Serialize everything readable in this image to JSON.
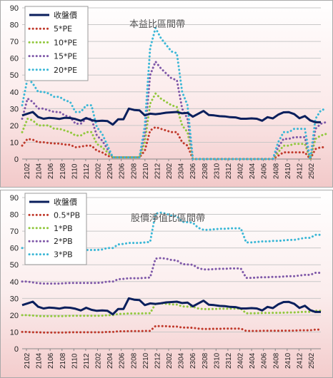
{
  "chart_data": [
    {
      "type": "line",
      "title": "本益比區間帶",
      "ylim": [
        0,
        90
      ],
      "yticks": [
        0,
        10,
        20,
        30,
        40,
        50,
        60,
        70,
        80,
        90
      ],
      "x_tick_labels": [
        "2102",
        "2104",
        "2106",
        "2108",
        "2110",
        "2112",
        "2202",
        "2204",
        "2206",
        "2208",
        "2210",
        "2212",
        "2302",
        "2304",
        "2306",
        "2308",
        "2310",
        "2312",
        "2402",
        "2404",
        "2406",
        "2408",
        "2410",
        "2412",
        "2502"
      ],
      "legend_position": "top-left",
      "grid": true,
      "series": [
        {
          "name": "收盤價",
          "color": "#0a1f5c",
          "style": "solid",
          "values": [
            26,
            27,
            28,
            25,
            24,
            24.5,
            24.3,
            23.9,
            24.6,
            24.4,
            23.8,
            22.8,
            24.4,
            23.2,
            22.6,
            22.8,
            22.6,
            20.5,
            23.7,
            23.7,
            30,
            29.2,
            29,
            26,
            27,
            26.7,
            27.1,
            27.6,
            27.8,
            28,
            27.2,
            27.5,
            25.2,
            26.9,
            28.6,
            26.2,
            26,
            25.5,
            25.4,
            24.9,
            24.8,
            24,
            24,
            24.2,
            24,
            22.8,
            24.9,
            24.2,
            26.4,
            27.8,
            27.9,
            26.8,
            24.3,
            25.6,
            23,
            21.9,
            21.9
          ]
        },
        {
          "name": "5*PE",
          "color": "#c0392b",
          "style": "dot",
          "values": [
            8,
            12,
            11.5,
            10,
            10,
            9.5,
            9.3,
            9.2,
            8.6,
            8.5,
            7,
            7.4,
            8,
            8,
            5,
            4,
            2,
            1,
            1,
            1,
            1,
            1,
            1,
            5,
            17,
            19,
            18,
            17,
            16,
            16,
            10,
            8,
            0,
            0,
            0,
            0,
            0,
            0,
            0,
            0,
            0,
            0,
            0,
            0,
            0,
            0,
            0,
            0,
            2,
            4,
            4,
            4,
            4,
            4,
            0,
            6,
            7,
            7
          ]
        },
        {
          "name": "10*PE",
          "color": "#92c83e",
          "style": "dot",
          "values": [
            16,
            24,
            23,
            20,
            20,
            20,
            18,
            18,
            17,
            16,
            14,
            14,
            16,
            16,
            9,
            7,
            4,
            1,
            1,
            1,
            1,
            1,
            1,
            10,
            33,
            39,
            36,
            34,
            32,
            31,
            20,
            16,
            0,
            0,
            0,
            0,
            0,
            0,
            0,
            0,
            0,
            0,
            0,
            0,
            0,
            0,
            0,
            0,
            4,
            8,
            8,
            9,
            9,
            9,
            0,
            12,
            14,
            15
          ]
        },
        {
          "name": "15*PE",
          "color": "#7e57a8",
          "style": "dot",
          "values": [
            24,
            36,
            34,
            30,
            30,
            29,
            28,
            28,
            26,
            25,
            21,
            21,
            24,
            24,
            14,
            11,
            6,
            1,
            1,
            1,
            1,
            1,
            1,
            15,
            50,
            58,
            54,
            51,
            48,
            47,
            30,
            24,
            0,
            0,
            0,
            0,
            0,
            0,
            0,
            0,
            0,
            0,
            0,
            0,
            0,
            0,
            0,
            0,
            7,
            12,
            12,
            13,
            13,
            13,
            0,
            18,
            21,
            22
          ]
        },
        {
          "name": "20*PE",
          "color": "#3ab7d6",
          "style": "dot",
          "values": [
            32,
            48,
            45,
            40,
            40,
            39,
            37,
            37,
            35,
            34,
            28,
            28,
            32,
            32,
            19,
            15,
            8,
            1,
            1,
            1,
            1,
            1,
            1,
            20,
            66,
            78,
            72,
            68,
            64,
            63,
            40,
            32,
            0,
            0,
            0,
            0,
            0,
            0,
            0,
            0,
            0,
            0,
            0,
            0,
            0,
            0,
            0,
            0,
            10,
            16,
            16,
            18,
            18,
            18,
            0,
            24,
            29,
            30
          ]
        }
      ]
    },
    {
      "type": "line",
      "title": "股價淨值比區間帶",
      "ylim": [
        0,
        90
      ],
      "yticks": [
        0,
        10,
        20,
        30,
        40,
        50,
        60,
        70,
        80,
        90
      ],
      "x_tick_labels": [
        "2102",
        "2104",
        "2106",
        "2108",
        "2110",
        "2112",
        "2202",
        "2204",
        "2206",
        "2208",
        "2210",
        "2212",
        "2302",
        "2304",
        "2306",
        "2308",
        "2310",
        "2312",
        "2402",
        "2404",
        "2406",
        "2408",
        "2410",
        "2412",
        "2502"
      ],
      "legend_position": "top-left",
      "grid": true,
      "series": [
        {
          "name": "收盤價",
          "color": "#0a1f5c",
          "style": "solid",
          "values": [
            26,
            27,
            28,
            25,
            24,
            24.5,
            24.3,
            23.9,
            24.6,
            24.4,
            23.8,
            22.8,
            24.4,
            23.2,
            22.6,
            22.8,
            22.6,
            20.5,
            23.7,
            23.7,
            30,
            29.2,
            29,
            26,
            27,
            26.7,
            27.1,
            27.6,
            27.8,
            28,
            27.2,
            27.5,
            25.2,
            26.9,
            28.6,
            26.2,
            26,
            25.5,
            25.4,
            24.9,
            24.8,
            24,
            24,
            24.2,
            24,
            22.8,
            24.9,
            24.2,
            26.4,
            27.8,
            27.9,
            26.8,
            24.3,
            25.6,
            23,
            21.9,
            21.9
          ]
        },
        {
          "name": "0.5*PB",
          "color": "#c0392b",
          "style": "dot",
          "values": [
            10,
            10,
            9.8,
            9.8,
            9.7,
            9.7,
            9.7,
            9.7,
            9.7,
            9.8,
            9.8,
            9.8,
            9.8,
            9.8,
            9.8,
            9.8,
            10,
            10,
            10.4,
            10.4,
            10.5,
            10.5,
            10.5,
            10.6,
            10.6,
            13.5,
            13.5,
            13.4,
            13.2,
            13.2,
            12.6,
            12.6,
            12.5,
            12,
            11.8,
            11.8,
            11.9,
            11.9,
            12,
            12,
            12,
            12,
            10.6,
            10.6,
            10.6,
            10.7,
            10.7,
            10.7,
            10.7,
            10.8,
            10.8,
            10.8,
            11,
            11,
            11,
            11.4,
            11.4
          ]
        },
        {
          "name": "1*PB",
          "color": "#92c83e",
          "style": "dot",
          "values": [
            20,
            20,
            19.8,
            19.5,
            19.4,
            19.4,
            19.4,
            19.4,
            19.5,
            19.6,
            19.6,
            19.6,
            19.6,
            19.6,
            19.6,
            19.7,
            20,
            20,
            20.7,
            20.8,
            21,
            21,
            21,
            21.1,
            21.2,
            26.8,
            27,
            26.8,
            26.4,
            26.3,
            25.2,
            25.1,
            25,
            24,
            23.6,
            23.6,
            23.7,
            23.8,
            23.8,
            23.9,
            23.9,
            23.9,
            21.1,
            21.1,
            21.2,
            21.3,
            21.3,
            21.4,
            21.4,
            21.5,
            21.6,
            21.6,
            21.8,
            22,
            22,
            22.6,
            22.6
          ]
        },
        {
          "name": "2*PB",
          "color": "#7e57a8",
          "style": "dot",
          "values": [
            40,
            40,
            39.5,
            39,
            38.8,
            38.8,
            38.8,
            38.8,
            39,
            39.2,
            39.2,
            39.2,
            39.2,
            39.2,
            39.2,
            39.4,
            40,
            40,
            41.4,
            41.6,
            42,
            42,
            42,
            42.2,
            42.4,
            53.6,
            54,
            53.6,
            52.8,
            52.6,
            50.4,
            50.2,
            50,
            48,
            47.2,
            47.2,
            47.4,
            47.6,
            47.6,
            47.8,
            47.8,
            47.8,
            42.2,
            42.2,
            42.4,
            42.6,
            42.6,
            42.8,
            42.8,
            43,
            43.2,
            43.2,
            43.6,
            44,
            44,
            45.2,
            45.2
          ]
        },
        {
          "name": "3*PB",
          "color": "#3ab7d6",
          "style": "dot",
          "values": [
            60,
            60,
            59.3,
            58.5,
            58.2,
            58.2,
            58.2,
            58.2,
            58.5,
            58.8,
            58.8,
            58.8,
            58.8,
            58.8,
            58.8,
            59.1,
            60,
            60,
            62.1,
            62.4,
            63,
            63,
            63,
            63.3,
            63.6,
            80.4,
            81,
            80.4,
            79.2,
            78.9,
            75.6,
            75.3,
            75,
            72,
            70.8,
            70.8,
            71.1,
            71.4,
            71.4,
            71.7,
            71.7,
            71.7,
            63.3,
            63.3,
            63.6,
            63.9,
            63.9,
            64.2,
            64.2,
            64.5,
            64.8,
            64.8,
            65.4,
            66,
            66,
            67.8,
            67.8
          ]
        }
      ]
    }
  ]
}
